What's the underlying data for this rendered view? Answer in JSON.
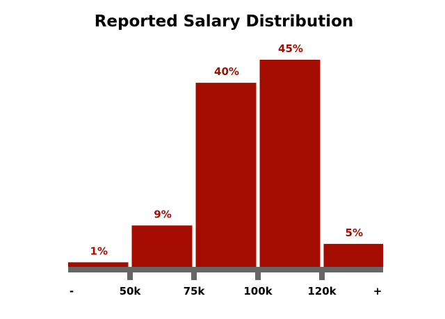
{
  "chart_data": {
    "type": "bar",
    "title": "Reported Salary Distribution",
    "categories": [
      "<50k",
      "50k-75k",
      "75k-100k",
      "100k-120k",
      "120k+"
    ],
    "values": [
      1,
      9,
      40,
      45,
      5
    ],
    "value_labels": [
      "1%",
      "9%",
      "40%",
      "45%",
      "5%"
    ],
    "tick_labels": [
      "-",
      "50k",
      "75k",
      "100k",
      "120k",
      "+"
    ],
    "ylim": [
      0,
      50
    ],
    "grid": false,
    "legend": "none",
    "colors": {
      "bar": "#a50c00",
      "axis": "#666666",
      "label": "#a50c00"
    }
  }
}
